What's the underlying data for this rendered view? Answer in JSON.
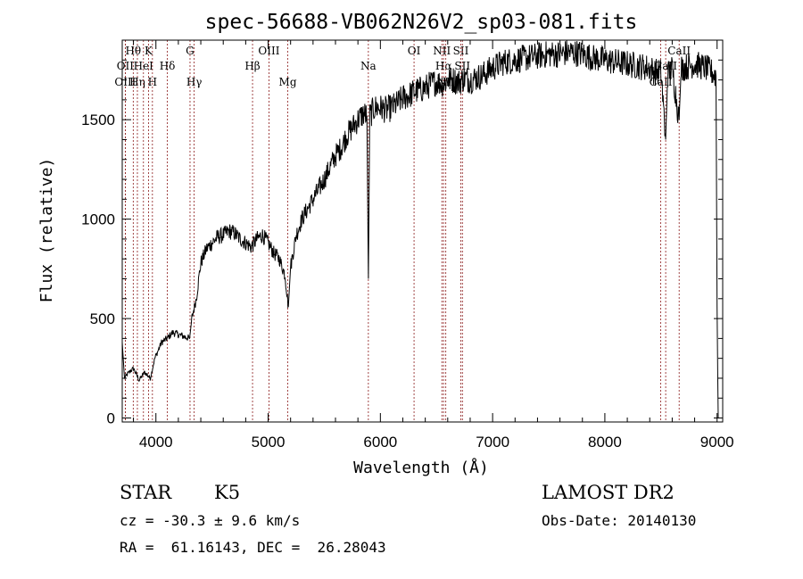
{
  "chart_data": {
    "type": "line",
    "title": "spec-56688-VB062N26V2_sp03-081.fits",
    "xlabel": "Wavelength (Å)",
    "ylabel": "Flux (relative)",
    "xlim": [
      3700,
      9050
    ],
    "ylim": [
      -20,
      1900
    ],
    "x_ticks": [
      4000,
      5000,
      6000,
      7000,
      8000,
      9000
    ],
    "y_ticks": [
      0,
      500,
      1000,
      1500
    ],
    "grid": false,
    "spectrum_anchors": [
      [
        3700,
        380
      ],
      [
        3720,
        200
      ],
      [
        3760,
        230
      ],
      [
        3800,
        250
      ],
      [
        3850,
        190
      ],
      [
        3900,
        230
      ],
      [
        3950,
        200
      ],
      [
        3990,
        300
      ],
      [
        4050,
        380
      ],
      [
        4100,
        400
      ],
      [
        4150,
        430
      ],
      [
        4200,
        420
      ],
      [
        4250,
        410
      ],
      [
        4300,
        400
      ],
      [
        4320,
        500
      ],
      [
        4360,
        600
      ],
      [
        4400,
        780
      ],
      [
        4450,
        850
      ],
      [
        4500,
        880
      ],
      [
        4550,
        910
      ],
      [
        4600,
        920
      ],
      [
        4650,
        940
      ],
      [
        4700,
        930
      ],
      [
        4750,
        900
      ],
      [
        4800,
        880
      ],
      [
        4850,
        860
      ],
      [
        4900,
        900
      ],
      [
        4950,
        920
      ],
      [
        5000,
        880
      ],
      [
        5050,
        830
      ],
      [
        5100,
        800
      ],
      [
        5150,
        720
      ],
      [
        5180,
        560
      ],
      [
        5200,
        760
      ],
      [
        5250,
        920
      ],
      [
        5300,
        1000
      ],
      [
        5350,
        1050
      ],
      [
        5400,
        1100
      ],
      [
        5450,
        1150
      ],
      [
        5500,
        1200
      ],
      [
        5550,
        1260
      ],
      [
        5600,
        1320
      ],
      [
        5650,
        1360
      ],
      [
        5700,
        1420
      ],
      [
        5750,
        1460
      ],
      [
        5800,
        1500
      ],
      [
        5850,
        1530
      ],
      [
        5880,
        1520
      ],
      [
        5893,
        700
      ],
      [
        5905,
        1520
      ],
      [
        5950,
        1560
      ],
      [
        6000,
        1560
      ],
      [
        6050,
        1550
      ],
      [
        6100,
        1560
      ],
      [
        6150,
        1580
      ],
      [
        6200,
        1610
      ],
      [
        6250,
        1620
      ],
      [
        6300,
        1640
      ],
      [
        6350,
        1650
      ],
      [
        6400,
        1660
      ],
      [
        6450,
        1680
      ],
      [
        6500,
        1690
      ],
      [
        6560,
        1680
      ],
      [
        6600,
        1700
      ],
      [
        6650,
        1700
      ],
      [
        6700,
        1690
      ],
      [
        6750,
        1710
      ],
      [
        6800,
        1700
      ],
      [
        6850,
        1710
      ],
      [
        6900,
        1720
      ],
      [
        6950,
        1740
      ],
      [
        7000,
        1760
      ],
      [
        7100,
        1790
      ],
      [
        7200,
        1800
      ],
      [
        7300,
        1810
      ],
      [
        7400,
        1820
      ],
      [
        7500,
        1830
      ],
      [
        7600,
        1830
      ],
      [
        7700,
        1840
      ],
      [
        7800,
        1830
      ],
      [
        7900,
        1810
      ],
      [
        8000,
        1800
      ],
      [
        8100,
        1790
      ],
      [
        8200,
        1780
      ],
      [
        8300,
        1770
      ],
      [
        8400,
        1760
      ],
      [
        8450,
        1740
      ],
      [
        8500,
        1740
      ],
      [
        8542,
        1400
      ],
      [
        8560,
        1730
      ],
      [
        8600,
        1760
      ],
      [
        8662,
        1500
      ],
      [
        8680,
        1760
      ],
      [
        8750,
        1770
      ],
      [
        8800,
        1780
      ],
      [
        8850,
        1770
      ],
      [
        8900,
        1760
      ],
      [
        8950,
        1740
      ],
      [
        8990,
        1720
      ],
      [
        9000,
        560
      ],
      [
        9010,
        0
      ]
    ],
    "lines": [
      {
        "name": "Hθ",
        "x": 3798,
        "row": 1
      },
      {
        "name": "OII",
        "x": 3727,
        "row": 2
      },
      {
        "name": "OIII",
        "x": 3727,
        "row": 3
      },
      {
        "name": "Hη",
        "x": 3835,
        "row": 3
      },
      {
        "name": "HeI",
        "x": 3889,
        "row": 2
      },
      {
        "name": "K",
        "x": 3934,
        "row": 1
      },
      {
        "name": "H",
        "x": 3969,
        "row": 3
      },
      {
        "name": "Hδ",
        "x": 4102,
        "row": 2
      },
      {
        "name": "G",
        "x": 4304,
        "row": 1
      },
      {
        "name": "Hγ",
        "x": 4341,
        "row": 3
      },
      {
        "name": "Hβ",
        "x": 4861,
        "row": 2
      },
      {
        "name": "OIII",
        "x": 5007,
        "row": 1
      },
      {
        "name": "Mg",
        "x": 5175,
        "row": 3
      },
      {
        "name": "Na",
        "x": 5893,
        "row": 2
      },
      {
        "name": "OI",
        "x": 6300,
        "row": 1
      },
      {
        "name": "NII",
        "x": 6548,
        "row": 1
      },
      {
        "name": "Hα",
        "x": 6563,
        "row": 2
      },
      {
        "name": "NII",
        "x": 6583,
        "row": 3
      },
      {
        "name": "SII",
        "x": 6717,
        "row": 1
      },
      {
        "name": "SII",
        "x": 6731,
        "row": 2
      },
      {
        "name": "CaII",
        "x": 8498,
        "row": 3
      },
      {
        "name": "CaII",
        "x": 8542,
        "row": 2
      },
      {
        "name": "CaII",
        "x": 8662,
        "row": 1
      }
    ],
    "line_color": "#8b1a1a",
    "spectrum_color": "#000000"
  },
  "footer": {
    "object_class": "STAR",
    "subclass": "K5",
    "redshift": "cz = -30.3 ± 9.6 km/s",
    "coordinates": "RA =  61.16143, DEC =  26.28043",
    "survey": "LAMOST DR2",
    "obs_date": "Obs-Date: 20140130"
  }
}
